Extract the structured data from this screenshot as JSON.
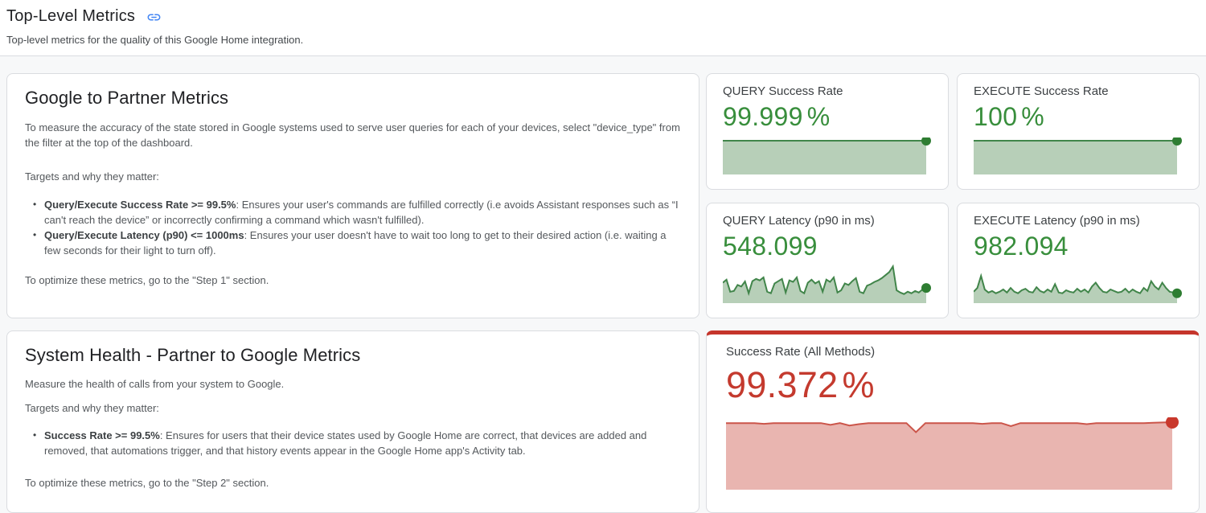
{
  "page": {
    "title": "Top-Level Metrics",
    "subtitle": "Top-level metrics for the quality of this Google Home integration."
  },
  "icons": {
    "header_link": "link-icon"
  },
  "colors": {
    "link_blue": "#4285f4",
    "green_value": "#388e3c",
    "green_line": "#41854a",
    "green_fill": "#b7cfb8",
    "green_dot": "#2e7d32",
    "red_value": "#c43a2e",
    "red_bar": "#c5352b",
    "red_line": "#cb554a",
    "red_fill": "#e9b5b0",
    "red_dot": "#c9382c"
  },
  "cards": {
    "google_to_partner": {
      "title": "Google to Partner Metrics",
      "intro": "To measure the accuracy of the state stored in Google systems used to serve user queries for each of your devices, select \"device_type\" from the filter at the top of the dashboard.",
      "targets_label": "Targets and why they matter:",
      "bullets": [
        {
          "bold": "Query/Execute Success Rate >= 99.5%",
          "rest": ": Ensures your user's commands are fulfilled correctly (i.e avoids Assistant responses such as “I can't reach the device” or incorrectly confirming a command which wasn't fulfilled)."
        },
        {
          "bold": "Query/Execute Latency (p90) <= 1000ms",
          "rest": ": Ensures your user doesn't have to wait too long to get to their desired action (i.e. waiting a few seconds for their light to turn off)."
        }
      ],
      "footer": "To optimize these metrics, go to the \"Step 1\" section."
    },
    "system_health": {
      "title": "System Health - Partner to Google Metrics",
      "intro": "Measure the health of calls from your system to Google.",
      "targets_label": "Targets and why they matter:",
      "bullets": [
        {
          "bold": "Success Rate >= 99.5%",
          "rest": ": Ensures for users that their device states used by Google Home are correct, that devices are added and removed, that automations trigger, and that history events appear in the Google Home app's Activity tab."
        }
      ],
      "footer": "To optimize these metrics, go to the \"Step 2\" section."
    },
    "metrics": [
      {
        "title": "QUERY Success Rate",
        "value": "99.999",
        "unit": "%",
        "status": "good",
        "sparkline": {
          "type": "area",
          "values": [
            1,
            1
          ],
          "line": "#41854a",
          "fill": "#b7cfb8",
          "dot": "#2e7d32",
          "dot_radius": 6
        }
      },
      {
        "title": "EXECUTE Success Rate",
        "value": "100",
        "unit": "%",
        "status": "good",
        "sparkline": {
          "type": "area",
          "values": [
            1,
            1
          ],
          "line": "#41854a",
          "fill": "#b7cfb8",
          "dot": "#2e7d32",
          "dot_radius": 6
        }
      },
      {
        "title": "QUERY Latency (p90 in ms)",
        "value": "548.099",
        "unit": "",
        "status": "good",
        "sparkline": {
          "type": "area",
          "values": [
            0.52,
            0.6,
            0.28,
            0.3,
            0.46,
            0.42,
            0.55,
            0.24,
            0.56,
            0.62,
            0.58,
            0.66,
            0.28,
            0.24,
            0.5,
            0.56,
            0.62,
            0.26,
            0.58,
            0.54,
            0.66,
            0.3,
            0.24,
            0.52,
            0.6,
            0.5,
            0.56,
            0.28,
            0.6,
            0.54,
            0.66,
            0.26,
            0.32,
            0.5,
            0.46,
            0.56,
            0.64,
            0.28,
            0.24,
            0.44,
            0.48,
            0.54,
            0.58,
            0.64,
            0.72,
            0.8,
            0.95,
            0.32,
            0.26,
            0.22,
            0.28,
            0.24,
            0.3,
            0.26,
            0.34,
            0.38
          ],
          "line": "#41854a",
          "fill": "#b7cfb8",
          "dot": "#2e7d32",
          "dot_radius": 6
        }
      },
      {
        "title": "EXECUTE Latency (p90 in ms)",
        "value": "982.094",
        "unit": "",
        "status": "good",
        "sparkline": {
          "type": "area",
          "values": [
            0.28,
            0.38,
            0.7,
            0.34,
            0.26,
            0.3,
            0.24,
            0.28,
            0.34,
            0.26,
            0.38,
            0.28,
            0.24,
            0.32,
            0.36,
            0.28,
            0.26,
            0.4,
            0.3,
            0.26,
            0.34,
            0.28,
            0.48,
            0.26,
            0.24,
            0.32,
            0.28,
            0.26,
            0.36,
            0.28,
            0.34,
            0.26,
            0.42,
            0.52,
            0.38,
            0.28,
            0.26,
            0.34,
            0.3,
            0.26,
            0.28,
            0.36,
            0.26,
            0.34,
            0.28,
            0.24,
            0.38,
            0.3,
            0.56,
            0.42,
            0.34,
            0.52,
            0.38,
            0.28,
            0.26,
            0.24
          ],
          "line": "#41854a",
          "fill": "#b7cfb8",
          "dot": "#2e7d32",
          "dot_radius": 6
        }
      }
    ],
    "all_methods": {
      "title": "Success Rate (All Methods)",
      "value": "99.372",
      "unit": "%",
      "status": "bad",
      "sparkline": {
        "type": "area",
        "values": [
          0.985,
          0.985,
          0.985,
          0.985,
          0.975,
          0.985,
          0.985,
          0.985,
          0.985,
          0.985,
          0.985,
          0.96,
          0.985,
          0.95,
          0.97,
          0.985,
          0.985,
          0.985,
          0.985,
          0.985,
          0.85,
          0.985,
          0.985,
          0.985,
          0.985,
          0.985,
          0.985,
          0.975,
          0.985,
          0.985,
          0.94,
          0.985,
          0.985,
          0.985,
          0.985,
          0.985,
          0.985,
          0.985,
          0.97,
          0.985,
          0.985,
          0.985,
          0.985,
          0.985,
          0.985,
          0.99,
          0.995,
          1.0
        ],
        "line": "#cb554a",
        "fill": "#e9b5b0",
        "dot": "#c9382c",
        "dot_radius": 8
      }
    }
  }
}
